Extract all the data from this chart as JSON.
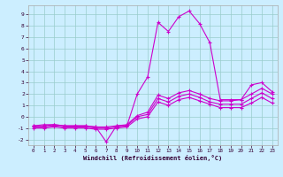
{
  "xlabel": "Windchill (Refroidissement éolien,°C)",
  "xlim": [
    -0.5,
    23.5
  ],
  "ylim": [
    -2.5,
    9.8
  ],
  "xticks": [
    0,
    1,
    2,
    3,
    4,
    5,
    6,
    7,
    8,
    9,
    10,
    11,
    12,
    13,
    14,
    15,
    16,
    17,
    18,
    19,
    20,
    21,
    22,
    23
  ],
  "yticks": [
    -2,
    -1,
    0,
    1,
    2,
    3,
    4,
    5,
    6,
    7,
    8,
    9
  ],
  "bg_color": "#cceeff",
  "line_color": "#cc00cc",
  "grid_color": "#99cccc",
  "lines": [
    {
      "x": [
        0,
        1,
        2,
        3,
        4,
        5,
        6,
        7,
        8,
        9,
        10,
        11,
        12,
        13,
        14,
        15,
        16,
        17,
        18,
        19,
        20,
        21,
        22,
        23
      ],
      "y": [
        -0.8,
        -0.7,
        -0.7,
        -0.8,
        -0.8,
        -0.8,
        -0.9,
        -2.2,
        -0.8,
        -0.8,
        2.0,
        3.5,
        8.3,
        7.5,
        8.8,
        9.3,
        8.2,
        6.5,
        1.5,
        1.5,
        1.5,
        2.8,
        3.0,
        2.2
      ]
    },
    {
      "x": [
        0,
        1,
        2,
        3,
        4,
        5,
        6,
        7,
        8,
        9,
        10,
        11,
        12,
        13,
        14,
        15,
        16,
        17,
        18,
        19,
        20,
        21,
        22,
        23
      ],
      "y": [
        -0.8,
        -0.8,
        -0.7,
        -0.8,
        -0.8,
        -0.8,
        -0.9,
        -0.9,
        -0.8,
        -0.7,
        0.1,
        0.4,
        1.9,
        1.6,
        2.1,
        2.3,
        2.0,
        1.6,
        1.4,
        1.4,
        1.5,
        2.0,
        2.5,
        2.0
      ]
    },
    {
      "x": [
        0,
        1,
        2,
        3,
        4,
        5,
        6,
        7,
        8,
        9,
        10,
        11,
        12,
        13,
        14,
        15,
        16,
        17,
        18,
        19,
        20,
        21,
        22,
        23
      ],
      "y": [
        -0.9,
        -0.9,
        -0.8,
        -0.9,
        -0.9,
        -0.9,
        -1.0,
        -1.0,
        -0.9,
        -0.8,
        0.0,
        0.2,
        1.6,
        1.3,
        1.8,
        2.0,
        1.7,
        1.3,
        1.1,
        1.1,
        1.1,
        1.6,
        2.1,
        1.6
      ]
    },
    {
      "x": [
        0,
        1,
        2,
        3,
        4,
        5,
        6,
        7,
        8,
        9,
        10,
        11,
        12,
        13,
        14,
        15,
        16,
        17,
        18,
        19,
        20,
        21,
        22,
        23
      ],
      "y": [
        -1.0,
        -1.0,
        -0.9,
        -1.0,
        -1.0,
        -1.0,
        -1.1,
        -1.1,
        -1.0,
        -0.9,
        -0.2,
        0.0,
        1.3,
        1.0,
        1.5,
        1.7,
        1.4,
        1.1,
        0.8,
        0.8,
        0.8,
        1.2,
        1.7,
        1.2
      ]
    }
  ]
}
